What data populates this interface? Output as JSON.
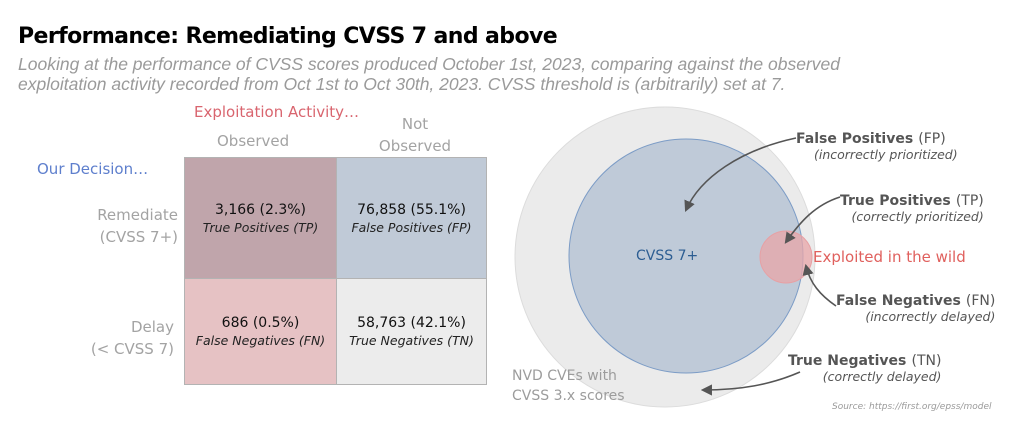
{
  "title": "Performance: Remediating CVSS 7 and above",
  "subtitle": [
    "Looking at the performance of CVSS scores produced October 1st, 2023, comparing against the observed",
    "exploitation activity recorded from Oct 1st to Oct 30th, 2023. CVSS threshold is (arbitrarily) set at 7."
  ],
  "matrix": {
    "column_group_label": "Exploitation Activity…",
    "columns": [
      "Observed",
      "Not Observed"
    ],
    "row_group_label": "Our Decision…",
    "rows": [
      {
        "label": "Remediate",
        "sublabel": "(CVSS 7+)"
      },
      {
        "label": "Delay",
        "sublabel": "(< CVSS 7)"
      }
    ],
    "cells": {
      "tp": {
        "value": "3,166 (2.3%)",
        "label": "True Positives (TP)",
        "color": "#c0a5ab"
      },
      "fp": {
        "value": "76,858 (55.1%)",
        "label": "False Positives (FP)",
        "color": "#c0cad7"
      },
      "fn": {
        "value": "686 (0.5%)",
        "label": "False Negatives (FN)",
        "color": "#e6c2c4"
      },
      "tn": {
        "value": "58,763 (42.1%)",
        "label": "True Negatives (TN)",
        "color": "#ececec"
      }
    }
  },
  "venn": {
    "outer_label": [
      "NVD CVEs with",
      "CVSS 3.x scores"
    ],
    "inner_label": "CVSS 7+",
    "exploited_label": "Exploited in the wild",
    "colors": {
      "outer": "#ebebeb",
      "inner": "#bfcad8",
      "inner_stroke": "#7c9cc6",
      "exploited": "#e8a5a8",
      "exploited_text": "#e0605d",
      "inner_text": "#2c5d92"
    },
    "annotations": {
      "fp": {
        "bold": "False Positives",
        "abbr": "(FP)",
        "note": "(incorrectly prioritized)"
      },
      "tp": {
        "bold": "True Positives",
        "abbr": "(TP)",
        "note": "(correctly prioritized)"
      },
      "fn": {
        "bold": "False Negatives",
        "abbr": "(FN)",
        "note": "(incorrectly delayed)"
      },
      "tn": {
        "bold": "True Negatives",
        "abbr": "(TN)",
        "note": "(correctly delayed)"
      }
    }
  },
  "source": "Source: https://first.org/epss/model"
}
